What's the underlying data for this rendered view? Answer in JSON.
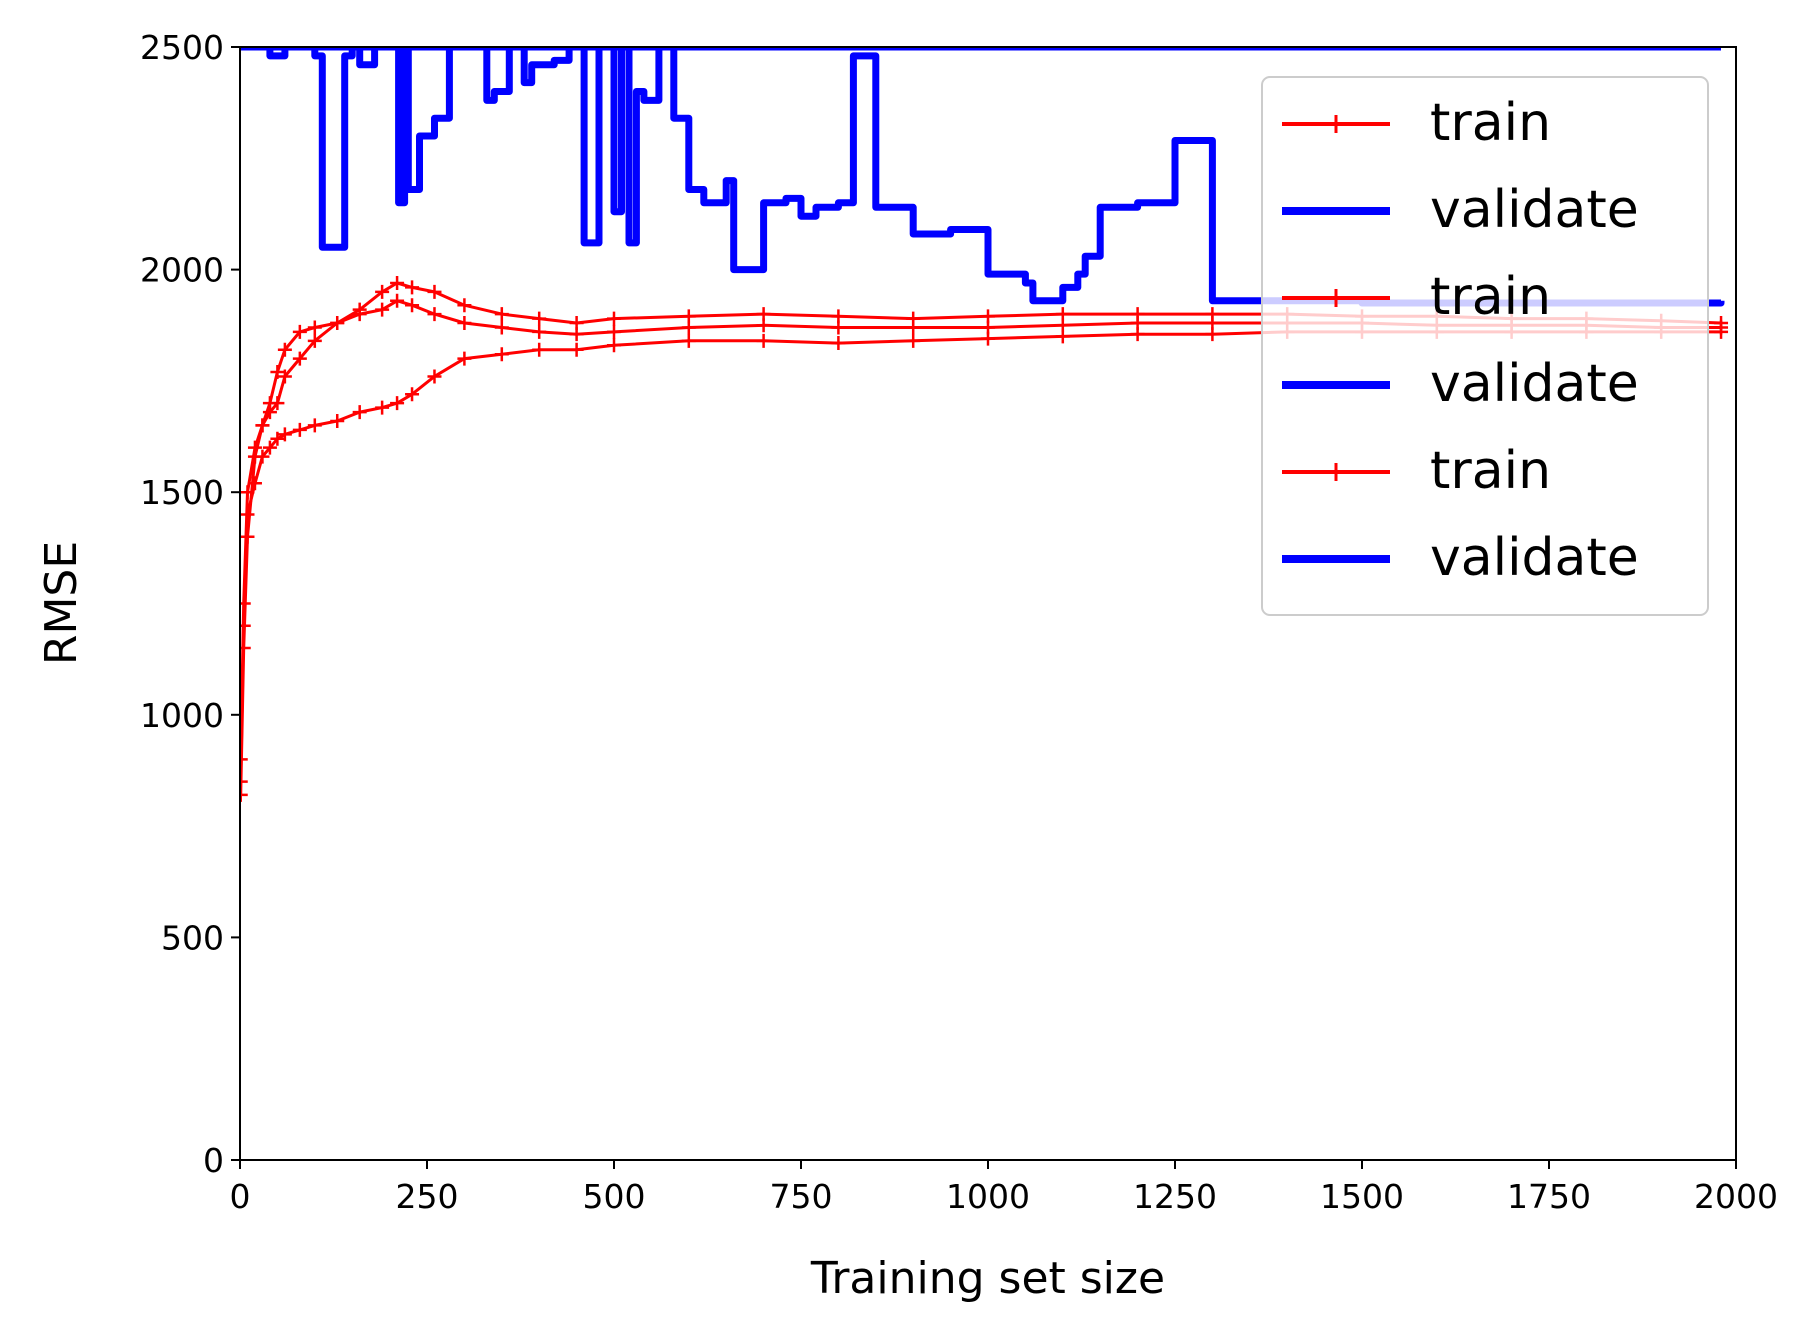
{
  "chart_data": {
    "type": "line",
    "title": "",
    "xlabel": "Training set size",
    "ylabel": "RMSE",
    "xlim": [
      0,
      2000
    ],
    "ylim": [
      0,
      2500
    ],
    "xticks": [
      "0",
      "250",
      "500",
      "750",
      "1000",
      "1250",
      "1500",
      "1750",
      "2000"
    ],
    "yticks": [
      "0",
      "500",
      "1000",
      "1500",
      "2000",
      "2500"
    ],
    "grid": false,
    "legend_position": "top-right",
    "legend_entries": [
      "train",
      "validate",
      "train",
      "validate",
      "train",
      "validate"
    ],
    "colors": {
      "train": "#ff0000",
      "validate": "#0000ff"
    },
    "series": [
      {
        "name": "train",
        "style": "red line with plus markers",
        "x": [
          1,
          5,
          10,
          20,
          30,
          40,
          50,
          60,
          80,
          100,
          130,
          160,
          190,
          210,
          230,
          260,
          300,
          350,
          400,
          450,
          500,
          600,
          700,
          800,
          900,
          1000,
          1100,
          1200,
          1300,
          1400,
          1500,
          1600,
          1700,
          1800,
          1900,
          1980
        ],
        "y": [
          820,
          1150,
          1400,
          1580,
          1650,
          1700,
          1770,
          1820,
          1860,
          1870,
          1880,
          1910,
          1950,
          1970,
          1960,
          1950,
          1920,
          1900,
          1890,
          1880,
          1890,
          1895,
          1900,
          1895,
          1890,
          1895,
          1900,
          1900,
          1900,
          1900,
          1895,
          1895,
          1890,
          1890,
          1885,
          1880
        ]
      },
      {
        "name": "validate",
        "style": "blue thick line",
        "x": [
          1,
          40,
          60,
          100,
          110,
          140,
          150,
          160,
          180,
          200,
          212,
          220,
          225,
          240,
          260,
          280,
          300,
          330,
          340,
          360,
          380,
          390,
          400,
          420,
          440,
          460,
          480,
          490,
          500,
          510,
          520,
          530,
          540,
          560,
          580,
          600,
          620,
          650,
          660,
          700,
          730,
          750,
          770,
          800,
          820,
          850,
          900,
          950,
          1000,
          1050,
          1060,
          1100,
          1120,
          1130,
          1150,
          1200,
          1250,
          1300,
          1400,
          1500,
          1600,
          1700,
          1800,
          1900,
          1980
        ],
        "y": [
          2500,
          2480,
          2500,
          2480,
          2050,
          2480,
          2500,
          2460,
          2500,
          2500,
          2150,
          2500,
          2180,
          2300,
          2340,
          2500,
          2500,
          2380,
          2400,
          2500,
          2420,
          2460,
          2460,
          2470,
          2500,
          2060,
          2500,
          2500,
          2130,
          2500,
          2060,
          2400,
          2380,
          2500,
          2340,
          2180,
          2150,
          2200,
          2000,
          2150,
          2160,
          2120,
          2140,
          2150,
          2480,
          2140,
          2080,
          2090,
          1990,
          1970,
          1930,
          1960,
          1990,
          2030,
          2140,
          2150,
          2290,
          1930,
          1930,
          1925,
          1925,
          1925,
          1925,
          1925,
          1930
        ]
      },
      {
        "name": "train",
        "style": "red line with plus markers",
        "x": [
          1,
          5,
          10,
          20,
          30,
          40,
          50,
          60,
          80,
          100,
          130,
          160,
          190,
          210,
          230,
          260,
          300,
          350,
          400,
          450,
          500,
          600,
          700,
          800,
          900,
          1000,
          1100,
          1200,
          1300,
          1400,
          1500,
          1600,
          1700,
          1800,
          1900,
          1980
        ],
        "y": [
          900,
          1250,
          1500,
          1600,
          1650,
          1680,
          1700,
          1760,
          1800,
          1840,
          1880,
          1900,
          1910,
          1930,
          1920,
          1900,
          1880,
          1870,
          1860,
          1855,
          1860,
          1870,
          1875,
          1870,
          1870,
          1870,
          1875,
          1880,
          1880,
          1880,
          1880,
          1875,
          1875,
          1875,
          1870,
          1870
        ]
      },
      {
        "name": "validate",
        "style": "blue thick line",
        "x": [
          1,
          200,
          400,
          600,
          800,
          1000,
          1200,
          1400,
          1600,
          1800,
          1980
        ],
        "y": [
          2500,
          2500,
          2500,
          2500,
          2500,
          2500,
          2500,
          2500,
          2500,
          2500,
          2500
        ]
      },
      {
        "name": "train",
        "style": "red line with plus markers",
        "x": [
          1,
          5,
          10,
          20,
          30,
          40,
          50,
          60,
          80,
          100,
          130,
          160,
          190,
          210,
          230,
          260,
          300,
          350,
          400,
          450,
          500,
          600,
          700,
          800,
          900,
          1000,
          1100,
          1200,
          1300,
          1400,
          1500,
          1600,
          1700,
          1800,
          1900,
          1980
        ],
        "y": [
          850,
          1200,
          1450,
          1520,
          1580,
          1600,
          1620,
          1630,
          1640,
          1650,
          1660,
          1680,
          1690,
          1700,
          1720,
          1760,
          1800,
          1810,
          1820,
          1820,
          1830,
          1840,
          1840,
          1835,
          1840,
          1845,
          1850,
          1855,
          1855,
          1860,
          1860,
          1860,
          1860,
          1860,
          1860,
          1860
        ]
      },
      {
        "name": "validate",
        "style": "blue thick line",
        "x": [
          1,
          200,
          400,
          600,
          800,
          1000,
          1200,
          1400,
          1600,
          1800,
          1980
        ],
        "y": [
          2500,
          2500,
          2500,
          2500,
          2500,
          2500,
          2500,
          2500,
          2500,
          2500,
          2500
        ]
      }
    ]
  }
}
